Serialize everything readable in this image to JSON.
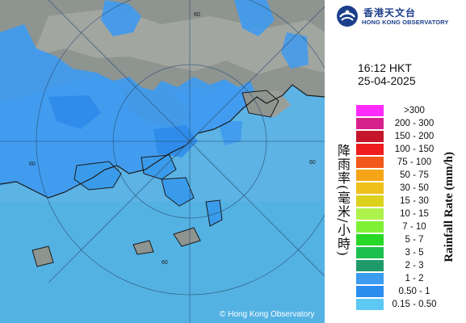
{
  "map": {
    "copyright": "© Hong Kong Observatory",
    "ring_labels": [
      "60",
      "60",
      "60",
      "60"
    ]
  },
  "header": {
    "org_zh": "香港天文台",
    "org_en": "HONG KONG OBSERVATORY"
  },
  "timestamp": {
    "time": "16:12 HKT",
    "date": "25-04-2025"
  },
  "legend": {
    "title_zh": "降雨率(毫米/小時)",
    "title_en": "Rainfall Rate (mm/h)",
    "items": [
      {
        "label": ">300",
        "color": "#ff2bff"
      },
      {
        "label": "200 - 300",
        "color": "#d6208c"
      },
      {
        "label": "150 - 200",
        "color": "#c4152a"
      },
      {
        "label": "100 - 150",
        "color": "#ee1c1c"
      },
      {
        "label": "75 - 100",
        "color": "#f3581a"
      },
      {
        "label": "50 - 75",
        "color": "#f6a517"
      },
      {
        "label": "30 - 50",
        "color": "#efbf1a"
      },
      {
        "label": "15 - 30",
        "color": "#dcd21b"
      },
      {
        "label": "10 - 15",
        "color": "#aef24b"
      },
      {
        "label": "7 - 10",
        "color": "#7ff135"
      },
      {
        "label": "5 - 7",
        "color": "#27d827"
      },
      {
        "label": "3 - 5",
        "color": "#1dbf4e"
      },
      {
        "label": "2 - 3",
        "color": "#20996b"
      },
      {
        "label": "1 - 2",
        "color": "#3b9cf0"
      },
      {
        "label": "0.50 - 1",
        "color": "#2a8dee"
      },
      {
        "label": "0.15 - 0.50",
        "color": "#5ec8f5"
      }
    ]
  }
}
